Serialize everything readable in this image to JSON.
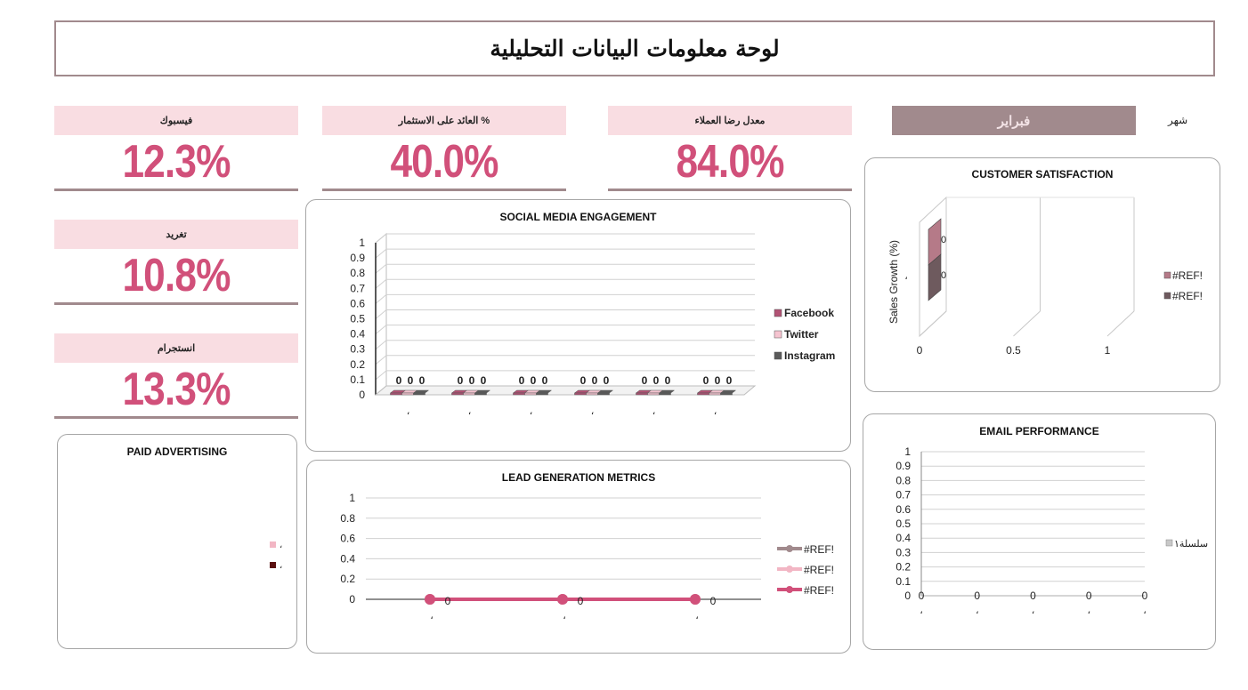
{
  "title": "لوحة معلومات البيانات التحليلية",
  "month": {
    "label": "شهر",
    "value": "فبراير"
  },
  "kpis": {
    "satisfaction": {
      "label": "معدل رضا العملاء",
      "value": "84.0%"
    },
    "roi": {
      "label": "العائد على الاستثمار %",
      "value": "40.0%"
    },
    "facebook": {
      "label": "فيسبوك",
      "value": "12.3%"
    },
    "twitter": {
      "label": "تغريد",
      "value": "10.8%"
    },
    "instagram": {
      "label": "انستجرام",
      "value": "13.3%"
    }
  },
  "colors": {
    "accent": "#d1507a",
    "frame": "#a18a8d",
    "header_bg": "#f9dde2"
  },
  "chart_data": [
    {
      "id": "social",
      "type": "bar",
      "title": "SOCIAL MEDIA ENGAGEMENT",
      "categories": [
        "،",
        "،",
        "،",
        "،",
        "،",
        "،"
      ],
      "series": [
        {
          "name": "Facebook",
          "color": "#b25274",
          "values": [
            0,
            0,
            0,
            0,
            0,
            0
          ]
        },
        {
          "name": "Twitter",
          "color": "#f5c4d0",
          "values": [
            0,
            0,
            0,
            0,
            0,
            0
          ]
        },
        {
          "name": "Instagram",
          "color": "#5b5b5b",
          "values": [
            0,
            0,
            0,
            0,
            0,
            0
          ]
        }
      ],
      "yticks": [
        "0",
        "0.1",
        "0.2",
        "0.3",
        "0.4",
        "0.5",
        "0.6",
        "0.7",
        "0.8",
        "0.9",
        "1"
      ],
      "ylim": [
        0,
        1
      ],
      "legend": "right"
    },
    {
      "id": "satisfaction",
      "type": "bar",
      "title": "CUSTOMER SATISFACTION",
      "ylabel": "Sales Growth (%)",
      "categories": [
        "،"
      ],
      "series": [
        {
          "name": "#REF!",
          "color": "#b57a88",
          "values": [
            0
          ]
        },
        {
          "name": "#REF!",
          "color": "#6e5a5e",
          "values": [
            0
          ]
        }
      ],
      "xticks": [
        "0",
        "0.5",
        "1"
      ],
      "legend": "right"
    },
    {
      "id": "paid",
      "type": "pie",
      "title": "PAID ADVERTISING",
      "series": [
        {
          "name": "،",
          "color": "#f2b6c4"
        },
        {
          "name": "،",
          "color": "#5a1010"
        }
      ],
      "legend": "right"
    },
    {
      "id": "lead",
      "type": "line",
      "title": "LEAD GENERATION METRICS",
      "categories": [
        "،",
        "،",
        "،"
      ],
      "series": [
        {
          "name": "#REF!",
          "color": "#a18a8d",
          "values": [
            0,
            0,
            0
          ]
        },
        {
          "name": "#REF!",
          "color": "#f2b6c4",
          "values": [
            0,
            0,
            0
          ]
        },
        {
          "name": "#REF!",
          "color": "#d1507a",
          "values": [
            0,
            0,
            0
          ]
        }
      ],
      "yticks": [
        "0",
        "0.2",
        "0.4",
        "0.6",
        "0.8",
        "1"
      ],
      "ylim": [
        0,
        1
      ],
      "legend": "right"
    },
    {
      "id": "email",
      "type": "line",
      "title": "EMAIL PERFORMANCE",
      "categories": [
        "،",
        "،",
        "،",
        "،",
        "،"
      ],
      "series": [
        {
          "name": "سلسلة١",
          "color": "#c8c8c8",
          "values": [
            0,
            0,
            0,
            0,
            0
          ]
        }
      ],
      "yticks": [
        "0",
        "0.1",
        "0.2",
        "0.3",
        "0.4",
        "0.5",
        "0.6",
        "0.7",
        "0.8",
        "0.9",
        "1"
      ],
      "ylim": [
        0,
        1
      ],
      "legend": "right"
    }
  ]
}
